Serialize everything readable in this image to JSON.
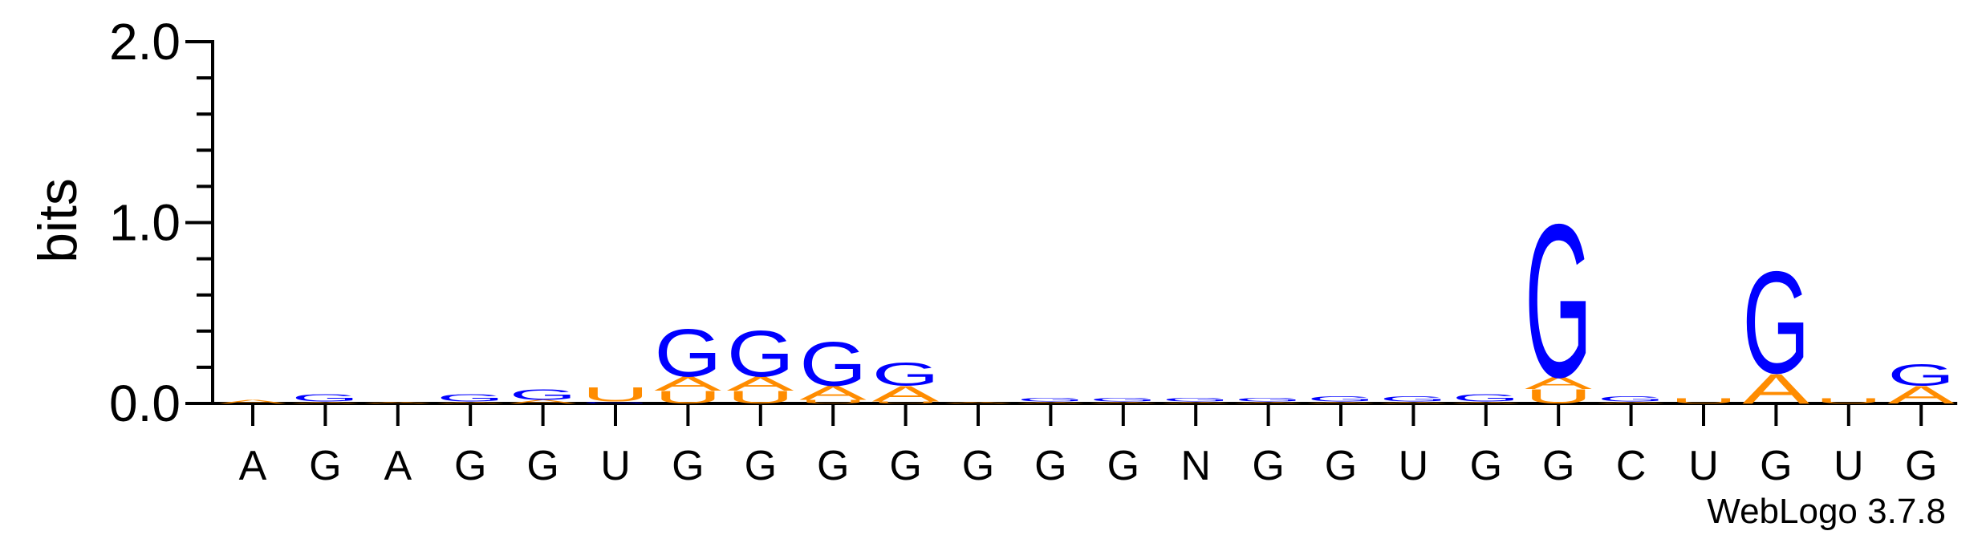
{
  "colors": {
    "G": "#0000ff",
    "A": "#ff8c00",
    "U": "#ff8c00",
    "C": "#0000ff",
    "N": "#000000",
    "axis": "#000000"
  },
  "chart_data": {
    "type": "sequence-logo",
    "ylabel": "bits",
    "ylim": [
      0,
      2.0
    ],
    "yticks": [
      "0.0",
      "1.0",
      "2.0"
    ],
    "credit": "WebLogo 3.7.8",
    "positions": [
      {
        "label": "A",
        "stack": [
          {
            "letter": "A",
            "bits": 0.02
          }
        ]
      },
      {
        "label": "G",
        "stack": [
          {
            "letter": "A",
            "bits": 0.01
          },
          {
            "letter": "G",
            "bits": 0.04
          }
        ]
      },
      {
        "label": "A",
        "stack": [
          {
            "letter": "A",
            "bits": 0.01
          }
        ]
      },
      {
        "label": "G",
        "stack": [
          {
            "letter": "A",
            "bits": 0.01
          },
          {
            "letter": "G",
            "bits": 0.04
          }
        ]
      },
      {
        "label": "G",
        "stack": [
          {
            "letter": "A",
            "bits": 0.02
          },
          {
            "letter": "G",
            "bits": 0.06
          }
        ]
      },
      {
        "label": "U",
        "stack": [
          {
            "letter": "G",
            "bits": 0.01
          },
          {
            "letter": "U",
            "bits": 0.08
          }
        ]
      },
      {
        "label": "G",
        "stack": [
          {
            "letter": "U",
            "bits": 0.07
          },
          {
            "letter": "A",
            "bits": 0.08
          },
          {
            "letter": "G",
            "bits": 0.27
          }
        ]
      },
      {
        "label": "G",
        "stack": [
          {
            "letter": "U",
            "bits": 0.07
          },
          {
            "letter": "A",
            "bits": 0.08
          },
          {
            "letter": "G",
            "bits": 0.26
          }
        ]
      },
      {
        "label": "G",
        "stack": [
          {
            "letter": "U",
            "bits": 0.02
          },
          {
            "letter": "A",
            "bits": 0.08
          },
          {
            "letter": "G",
            "bits": 0.25
          }
        ]
      },
      {
        "label": "G",
        "stack": [
          {
            "letter": "U",
            "bits": 0.01
          },
          {
            "letter": "A",
            "bits": 0.09
          },
          {
            "letter": "G",
            "bits": 0.13
          }
        ]
      },
      {
        "label": "G",
        "stack": [
          {
            "letter": "A",
            "bits": 0.01
          }
        ]
      },
      {
        "label": "G",
        "stack": [
          {
            "letter": "A",
            "bits": 0.01
          },
          {
            "letter": "G",
            "bits": 0.02
          }
        ]
      },
      {
        "label": "G",
        "stack": [
          {
            "letter": "A",
            "bits": 0.01
          },
          {
            "letter": "G",
            "bits": 0.02
          }
        ]
      },
      {
        "label": "N",
        "stack": [
          {
            "letter": "A",
            "bits": 0.01
          },
          {
            "letter": "G",
            "bits": 0.02
          }
        ]
      },
      {
        "label": "G",
        "stack": [
          {
            "letter": "A",
            "bits": 0.01
          },
          {
            "letter": "G",
            "bits": 0.02
          }
        ]
      },
      {
        "label": "G",
        "stack": [
          {
            "letter": "A",
            "bits": 0.01
          },
          {
            "letter": "G",
            "bits": 0.03
          }
        ]
      },
      {
        "label": "U",
        "stack": [
          {
            "letter": "A",
            "bits": 0.01
          },
          {
            "letter": "G",
            "bits": 0.03
          }
        ]
      },
      {
        "label": "G",
        "stack": [
          {
            "letter": "A",
            "bits": 0.01
          },
          {
            "letter": "G",
            "bits": 0.04
          }
        ]
      },
      {
        "label": "G",
        "stack": [
          {
            "letter": "U",
            "bits": 0.08
          },
          {
            "letter": "A",
            "bits": 0.07
          },
          {
            "letter": "G",
            "bits": 0.87
          }
        ]
      },
      {
        "label": "C",
        "stack": [
          {
            "letter": "A",
            "bits": 0.01
          },
          {
            "letter": "G",
            "bits": 0.03
          }
        ]
      },
      {
        "label": "U",
        "stack": [
          {
            "letter": "U",
            "bits": 0.03
          }
        ]
      },
      {
        "label": "G",
        "stack": [
          {
            "letter": "A",
            "bits": 0.17
          },
          {
            "letter": "G",
            "bits": 0.58
          }
        ]
      },
      {
        "label": "U",
        "stack": [
          {
            "letter": "U",
            "bits": 0.03
          }
        ]
      },
      {
        "label": "G",
        "stack": [
          {
            "letter": "A",
            "bits": 0.1
          },
          {
            "letter": "G",
            "bits": 0.12
          }
        ]
      }
    ]
  }
}
